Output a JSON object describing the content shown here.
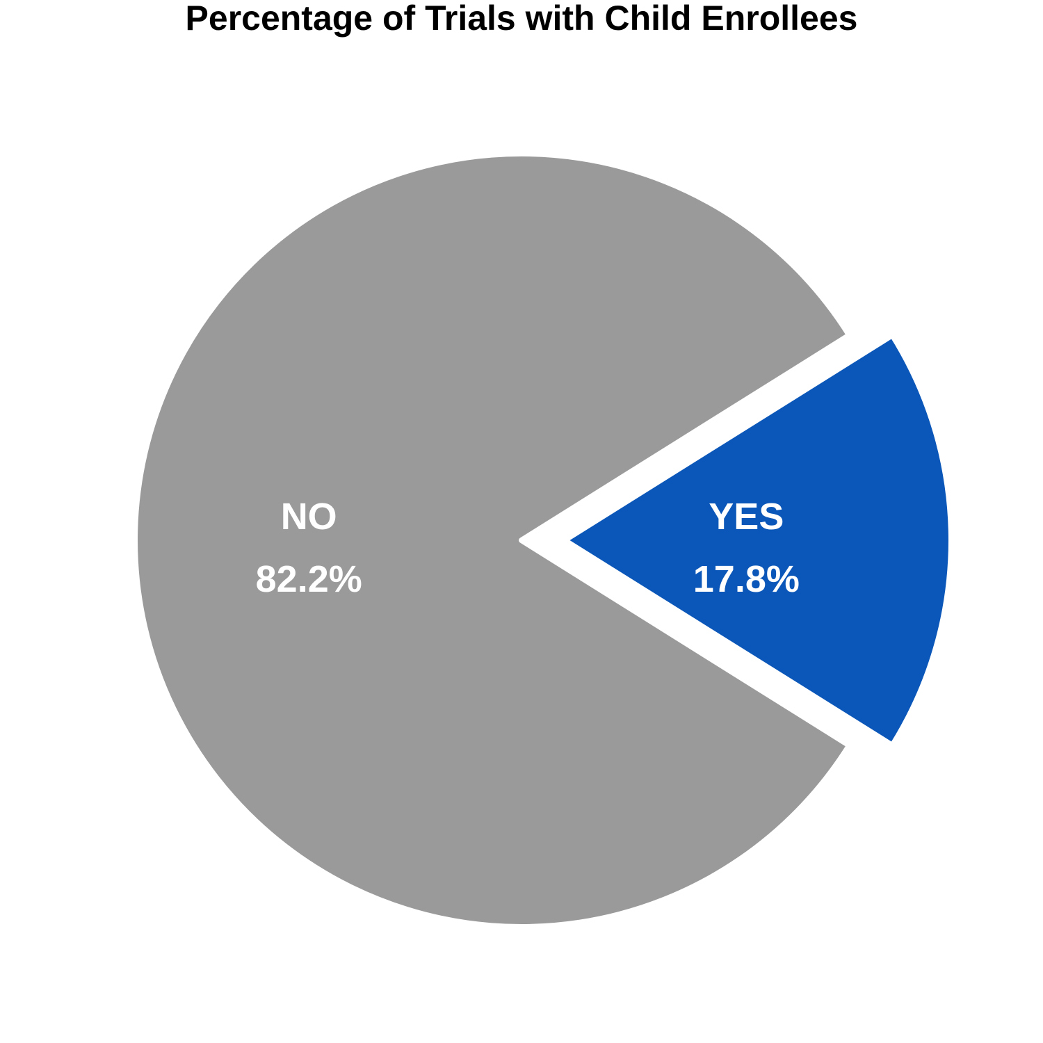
{
  "chart_data": {
    "type": "pie",
    "title": "Percentage of Trials with Child Enrollees",
    "slices": [
      {
        "label": "YES",
        "value": 17.8,
        "value_label": "17.8%",
        "color": "#0a57b9",
        "exploded": true
      },
      {
        "label": "NO",
        "value": 82.2,
        "value_label": "82.2%",
        "color": "#9a9a9a",
        "exploded": false
      }
    ],
    "legend": "none"
  }
}
